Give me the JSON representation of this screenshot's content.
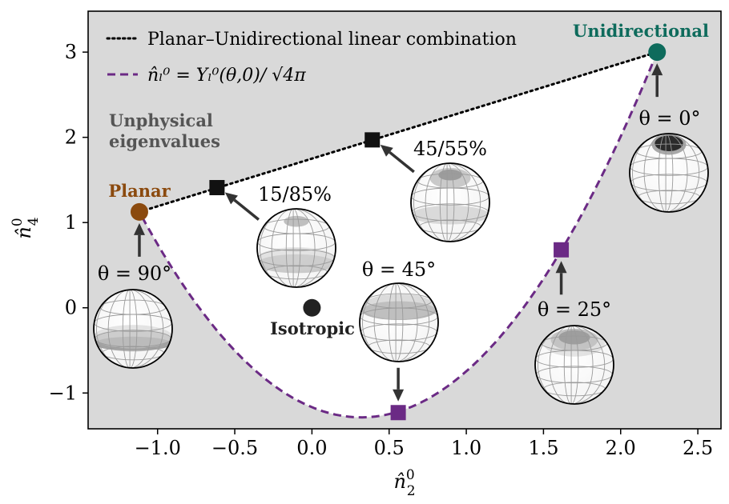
{
  "chart_data": {
    "type": "line",
    "xlabel": "n̂",
    "xlabel_sub": "2",
    "xlabel_sup": "0",
    "ylabel": "n̂",
    "ylabel_sub": "4",
    "ylabel_sup": "0",
    "xlim": [
      -1.45,
      2.65
    ],
    "ylim": [
      -1.42,
      3.48
    ],
    "xticks": [
      -1.0,
      -0.5,
      0.0,
      0.5,
      1.0,
      1.5,
      2.0,
      2.5
    ],
    "xtick_labels": [
      "−1.0",
      "−0.5",
      "0.0",
      "0.5",
      "1.0",
      "1.5",
      "2.0",
      "2.5"
    ],
    "yticks": [
      -1,
      0,
      1,
      2,
      3
    ],
    "ytick_labels": [
      "−1",
      "0",
      "1",
      "2",
      "3"
    ],
    "grid": false,
    "legend": {
      "placement": "top-left",
      "entries": [
        {
          "label": "Planar–Unidirectional linear combination",
          "style": "dotted",
          "color": "#000000"
        },
        {
          "label": "n̂ₗ⁰ = Yₗ⁰(θ,0)/ √4π",
          "style": "dashed",
          "color": "#6b2a85"
        }
      ]
    },
    "series": [
      {
        "name": "Planar–Unidirectional linear combination",
        "style": "dotted",
        "color": "#000000",
        "x": [
          -1.118,
          2.236
        ],
        "y": [
          1.125,
          3.0
        ]
      },
      {
        "name": "n̂ₗ⁰ = Yₗ⁰(θ,0)/ √4π",
        "style": "dashed",
        "color": "#6b2a85",
        "parametric": "theta_deg_0_to_90"
      }
    ],
    "markers": [
      {
        "name": "planar",
        "x": -1.118,
        "y": 1.125,
        "shape": "circle",
        "color": "#8b4a0e"
      },
      {
        "name": "unidirectional",
        "x": 2.236,
        "y": 3.0,
        "shape": "circle",
        "color": "#0e6b5c"
      },
      {
        "name": "isotropic",
        "x": 0.0,
        "y": 0.0,
        "shape": "circle",
        "color": "#222222"
      },
      {
        "name": "mix-15-85",
        "x": -0.615,
        "y": 1.41,
        "shape": "square",
        "color": "#111111"
      },
      {
        "name": "mix-45-55",
        "x": 0.391,
        "y": 1.97,
        "shape": "square",
        "color": "#111111"
      },
      {
        "name": "theta-45",
        "x": 0.559,
        "y": -1.23,
        "shape": "square",
        "color": "#6b2a85"
      },
      {
        "name": "theta-25",
        "x": 1.615,
        "y": 0.68,
        "shape": "square",
        "color": "#6b2a85"
      }
    ],
    "annotations": {
      "unidirectional": "Unidirectional",
      "planar": "Planar",
      "isotropic": "Isotropic",
      "unphysical_line1": "Unphysical",
      "unphysical_line2": "eigenvalues",
      "mix_15_85": "15/85%",
      "mix_45_55": "45/55%",
      "theta_0": "θ = 0°",
      "theta_25": "θ = 25°",
      "theta_45": "θ = 45°",
      "theta_90": "θ = 90°"
    },
    "colors": {
      "unphysical_region": "#d9d9d9",
      "physical_region": "#ffffff",
      "planar": "#8b4a0e",
      "unidirectional": "#0e6b5c",
      "curve": "#6b2a85",
      "unphysical_text": "#555555",
      "arrow": "#333333"
    }
  }
}
